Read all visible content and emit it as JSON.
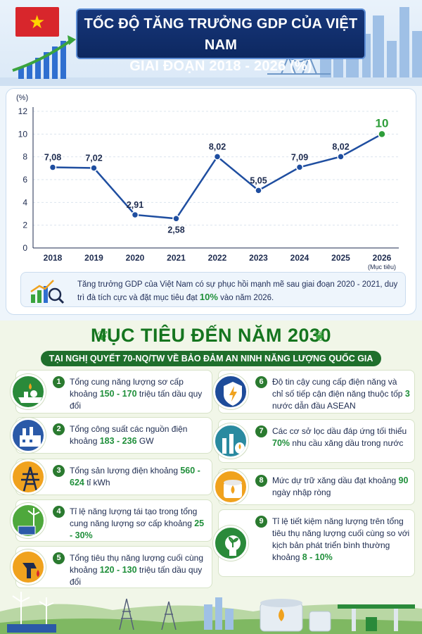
{
  "header": {
    "title_line1": "TỐC ĐỘ TĂNG TRƯỞNG GDP CỦA VIỆT NAM",
    "title_line2": "GIAI ĐOẠN 2018 - 2026 (%)",
    "flag_icon": "vietnam-flag-icon",
    "colors": {
      "title_bg": "#16367a",
      "flag_red": "#d8262c",
      "star": "#ffd400"
    }
  },
  "chart_data": {
    "type": "line",
    "categories": [
      "2018",
      "2019",
      "2020",
      "2021",
      "2022",
      "2023",
      "2024",
      "2025",
      "2026"
    ],
    "category_note": "(Mục tiêu)",
    "values": [
      7.08,
      7.02,
      2.91,
      2.58,
      8.02,
      5.05,
      7.09,
      8.02,
      10
    ],
    "value_labels": [
      "7,08",
      "7,02",
      "2,91",
      "2,58",
      "8,02",
      "5,05",
      "7,09",
      "8,02",
      "10"
    ],
    "ylabel": "(%)",
    "yticks": [
      "0",
      "2",
      "4",
      "6",
      "8",
      "10",
      "12"
    ],
    "ylim": [
      0,
      12
    ],
    "grid": true,
    "line_color": "#1f4ea0",
    "target_color": "#2e9e3a"
  },
  "summary": {
    "text_before": "Tăng trưởng GDP của Việt Nam có sự phục hồi mạnh mẽ sau giai đoạn 2020 - 2021, duy trì đà tích cực và đặt mục tiêu đạt ",
    "highlight": "10%",
    "text_after": " vào năm 2026.",
    "icon": "growth-chart-magnifier-icon"
  },
  "goals": {
    "title": "MỤC TIÊU ĐẾN NĂM 2030",
    "subtitle": "TẠI NGHỊ QUYẾT 70-NQ/TW VỀ BẢO ĐẢM AN NINH NĂNG LƯỢNG QUỐC GIA",
    "items": [
      {
        "num": "1",
        "pre": "Tổng cung năng lượng sơ cấp khoảng ",
        "hl": "150 - 170",
        "post": " triệu tấn dầu quy đổi",
        "icon": "tanker-ship-icon",
        "color": "#2a8a3a"
      },
      {
        "num": "2",
        "pre": "Tổng công suất các nguồn điện khoảng ",
        "hl": "183 - 236",
        "post": " GW",
        "icon": "power-plant-icon",
        "color": "#2b5aa8"
      },
      {
        "num": "3",
        "pre": "Tổng sản lượng điện khoảng ",
        "hl": "560 - 624",
        "post": " tỉ kWh",
        "icon": "transmission-tower-icon",
        "color": "#f0a21e"
      },
      {
        "num": "4",
        "pre": "Tỉ lệ năng lượng tái tạo trong tổng cung năng lượng sơ cấp khoảng ",
        "hl": "25 - 30%",
        "post": "",
        "icon": "wind-solar-icon",
        "color": "#4ea83c"
      },
      {
        "num": "5",
        "pre": "Tổng tiêu thụ năng lượng cuối cùng khoảng ",
        "hl": "120 - 130",
        "post": " triệu tấn dầu quy đổi",
        "icon": "fuel-nozzle-icon",
        "color": "#f0a21e"
      },
      {
        "num": "6",
        "pre": "Độ tin cậy cung cấp điện năng và chỉ số tiếp cận điện năng thuộc tốp ",
        "hl": "3",
        "post": " nước dẫn đầu ASEAN",
        "icon": "energy-shield-icon",
        "color": "#1e4c9a"
      },
      {
        "num": "7",
        "pre": "Các cơ sở lọc dầu đáp ứng tối thiểu ",
        "hl": "70%",
        "post": " nhu cầu xăng dầu trong nước",
        "icon": "oil-refinery-icon",
        "color": "#2a8aa0"
      },
      {
        "num": "8",
        "pre": "Mức dự trữ xăng dầu đạt khoảng ",
        "hl": "90",
        "post": " ngày nhập ròng",
        "icon": "oil-storage-icon",
        "color": "#f0a21e"
      },
      {
        "num": "9",
        "pre": "Tỉ lệ tiết kiệm năng lượng trên tổng tiêu thụ năng lượng cuối cùng so với kịch bản phát triển bình thường khoảng ",
        "hl": "8 - 10%",
        "post": "",
        "icon": "eco-lightbulb-icon",
        "color": "#2a8a3a"
      }
    ]
  }
}
